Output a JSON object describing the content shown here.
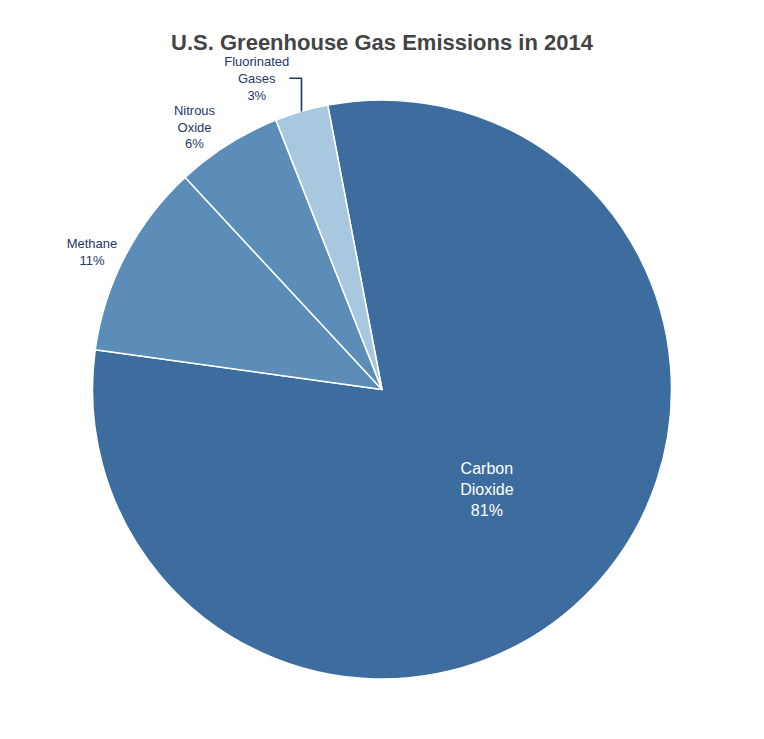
{
  "chart_data": {
    "type": "pie",
    "title": "U.S. Greenhouse Gas Emissions in 2014",
    "categories": [
      "Carbon\nDioxide",
      "Methane",
      "Nitrous\nOxide",
      "Fluorinated\nGases"
    ],
    "values": [
      81,
      11,
      6,
      3
    ],
    "value_labels": [
      "81%",
      "11%",
      "6%",
      "3%"
    ],
    "colors": [
      "#3d6d9e",
      "#5b8db8",
      "#5b8db8",
      "#a8c8e0"
    ],
    "data_labels": true
  }
}
